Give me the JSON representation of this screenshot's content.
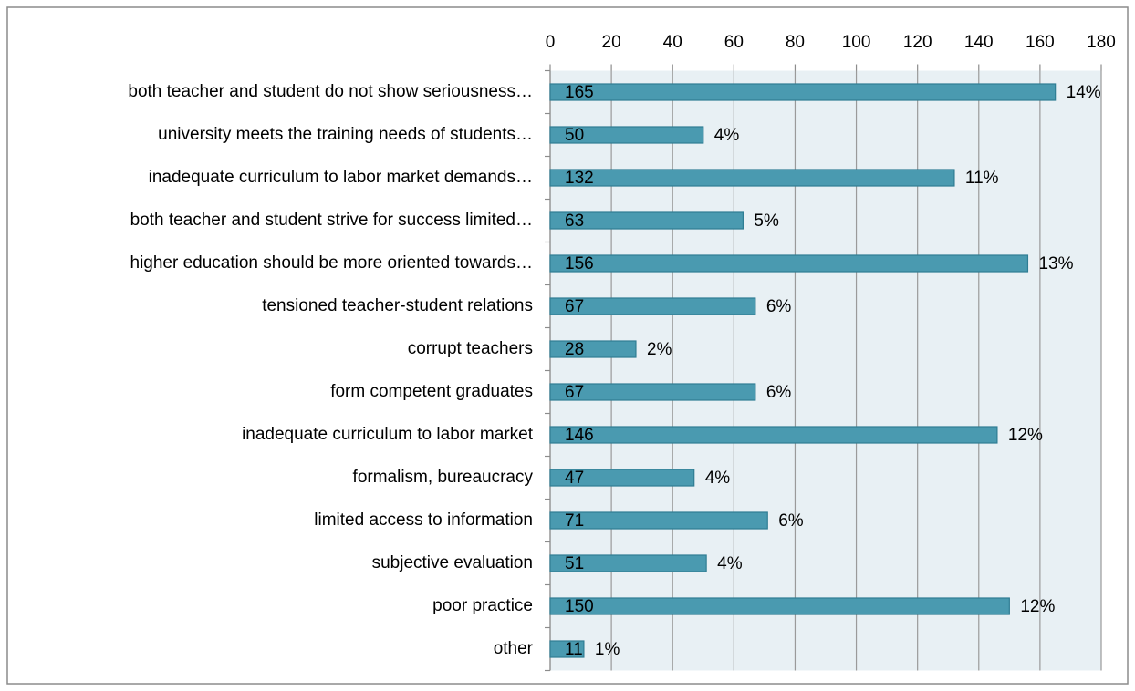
{
  "chart_data": {
    "type": "bar",
    "orientation": "horizontal",
    "categories": [
      "both teacher and student do not show seriousness…",
      "university meets the training needs of students…",
      "inadequate curriculum to labor market demands…",
      "both teacher and student strive for success limited…",
      "higher education should be more oriented towards…",
      "tensioned teacher-student relations",
      "corrupt teachers",
      "form competent graduates",
      "inadequate curriculum to labor market",
      "formalism, bureaucracy",
      "limited access to information",
      "subjective evaluation",
      "poor practice",
      "other"
    ],
    "values": [
      165,
      50,
      132,
      63,
      156,
      67,
      28,
      67,
      146,
      47,
      71,
      51,
      150,
      11
    ],
    "percent_labels": [
      "14%",
      "4%",
      "11%",
      "5%",
      "13%",
      "6%",
      "2%",
      "6%",
      "12%",
      "4%",
      "6%",
      "4%",
      "12%",
      "1%"
    ],
    "color": "#4a9ab0",
    "xlim": [
      0,
      180
    ],
    "xticks": [
      0,
      20,
      40,
      60,
      80,
      100,
      120,
      140,
      160,
      180
    ],
    "grid": true
  }
}
